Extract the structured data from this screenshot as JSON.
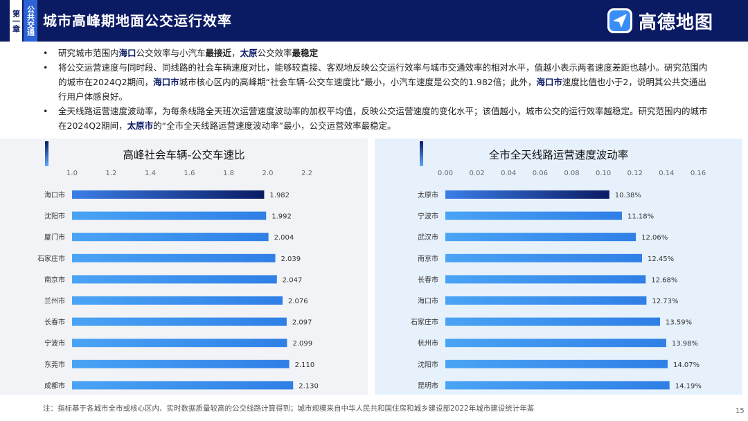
{
  "header": {
    "chapter": "第一章",
    "section": "公共交通",
    "title": "城市高峰期地面公交运行效率",
    "logo_text": "高德地图",
    "colors": {
      "navy": "#0a1a63",
      "accent": "#2c63d6"
    }
  },
  "bullets": [
    {
      "parts": [
        "研究城市范围内",
        "海口",
        "公交效率与小汽车",
        "最接近",
        "，",
        "太原",
        "公交效率",
        "最稳定"
      ]
    },
    {
      "parts": [
        "将公交运营速度与同时段、同线路的社会车辆速度对比，能够较直接、客观地反映公交运行效率与城市交通效率的相对水平，值越小表示两者速度差距也越小。研究范围内的城市在2024Q2期间，",
        "海口市",
        "城市核心区内的高峰期“社会车辆-公交车速度比”最小，小汽车速度是公交的1.982倍；此外，",
        "海口市",
        "速度比值也小于2，说明其公共交通出行用户体感良好。"
      ]
    },
    {
      "parts": [
        "全天线路运营速度波动率，为每条线路全天班次运营速度波动率的加权平均值，反映公交运营速度的变化水平；该值越小，城市公交的运行效率越稳定。研究范围内的城市在2024Q2期间，",
        "太原市",
        "的“全市全天线路运营速度波动率”最小，公交运营效率最稳定。"
      ]
    }
  ],
  "chart_data": [
    {
      "type": "bar",
      "orientation": "horizontal",
      "title": "高峰社会车辆-公交车速比",
      "categories": [
        "海口市",
        "沈阳市",
        "厦门市",
        "石家庄市",
        "南京市",
        "兰州市",
        "长春市",
        "宁波市",
        "东莞市",
        "成都市"
      ],
      "values": [
        1.982,
        1.992,
        2.004,
        2.039,
        2.047,
        2.076,
        2.097,
        2.099,
        2.11,
        2.13
      ],
      "labels": [
        "1.982",
        "1.992",
        "2.004",
        "2.039",
        "2.047",
        "2.076",
        "2.097",
        "2.099",
        "2.110",
        "2.130"
      ],
      "ticks": [
        "1.0",
        "1.2",
        "1.4",
        "1.6",
        "1.8",
        "2.0",
        "2.2"
      ],
      "xlim": [
        1.0,
        2.2
      ],
      "axis_position": "top",
      "highlight_index": 0
    },
    {
      "type": "bar",
      "orientation": "horizontal",
      "title": "全市全天线路运营速度波动率",
      "categories": [
        "太原市",
        "宁波市",
        "武汉市",
        "南京市",
        "长春市",
        "海口市",
        "石家庄市",
        "杭州市",
        "沈阳市",
        "昆明市"
      ],
      "values": [
        0.1038,
        0.1118,
        0.1206,
        0.1245,
        0.1268,
        0.1273,
        0.1359,
        0.1398,
        0.1407,
        0.1419
      ],
      "labels": [
        "10.38%",
        "11.18%",
        "12.06%",
        "12.45%",
        "12.68%",
        "12.73%",
        "13.59%",
        "13.98%",
        "14.07%",
        "14.19%"
      ],
      "ticks": [
        "0.00",
        "0.02",
        "0.04",
        "0.06",
        "0.08",
        "0.10",
        "0.12",
        "0.14",
        "0.16"
      ],
      "xlim": [
        0.0,
        0.16
      ],
      "axis_position": "top",
      "highlight_index": 0
    }
  ],
  "note": "注：指标基于各城市全市或核心区内、实时数据质量较高的公交线路计算得到；城市规模来自中华人民共和国住房和城乡建设部2022年城市建设统计年鉴",
  "page_number": "15"
}
